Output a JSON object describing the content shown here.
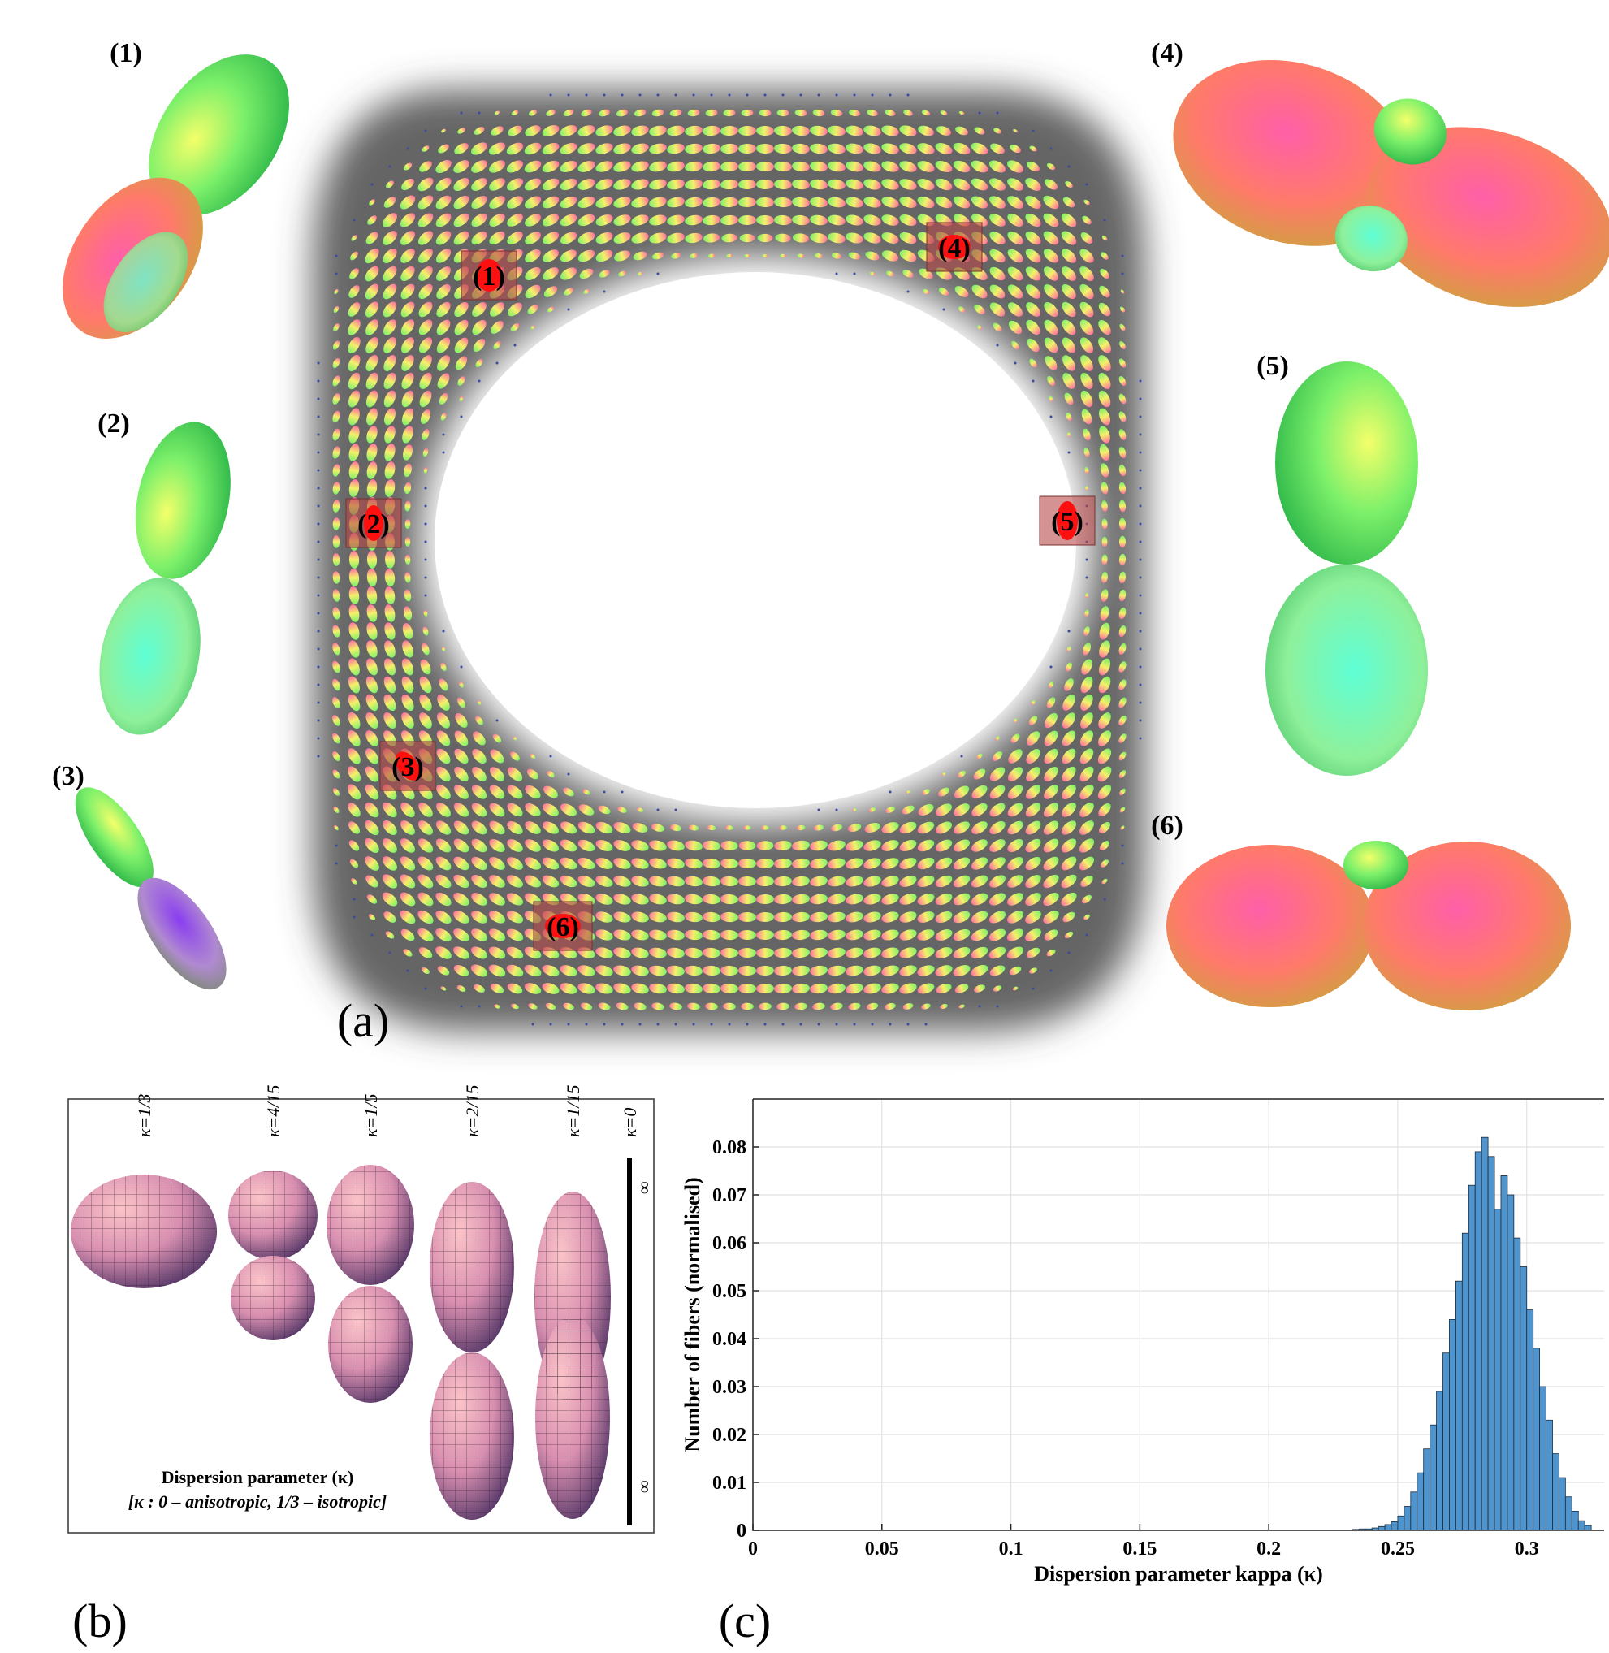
{
  "panel_labels": [
    "(a)",
    "(b)",
    "(c)"
  ],
  "glyph_labels": [
    "(1)",
    "(2)",
    "(3)",
    "(4)",
    "(5)",
    "(6)"
  ],
  "panel_b": {
    "kappa_labels": [
      "κ=1/3",
      "κ=4/15",
      "κ=1/5",
      "κ=2/15",
      "κ=1/15",
      "κ=0"
    ],
    "infinity": "∞",
    "caption": "Dispersion parameter (κ)",
    "note": "[κ : 0 – anisotropic, 1/3 – isotropic]"
  },
  "chart_data": {
    "type": "histogram",
    "xlabel": "Dispersion parameter kappa (κ)",
    "ylabel": "Number of fibers (normalised)",
    "bins": [
      0.23,
      0.2325,
      0.235,
      0.2375,
      0.24,
      0.2425,
      0.245,
      0.2475,
      0.25,
      0.2525,
      0.255,
      0.2575,
      0.26,
      0.2625,
      0.265,
      0.2675,
      0.27,
      0.2725,
      0.275,
      0.2775,
      0.28,
      0.2825,
      0.285,
      0.2875,
      0.29,
      0.2925,
      0.295,
      0.2975,
      0.3,
      0.3025,
      0.305,
      0.3075,
      0.31,
      0.3125,
      0.315,
      0.3175,
      0.32,
      0.3225,
      0.325
    ],
    "values": [
      0,
      0.0002,
      0.0003,
      0.0003,
      0.0005,
      0.0008,
      0.0012,
      0.0018,
      0.003,
      0.005,
      0.008,
      0.012,
      0.017,
      0.022,
      0.029,
      0.037,
      0.044,
      0.052,
      0.062,
      0.072,
      0.079,
      0.082,
      0.078,
      0.067,
      0.074,
      0.07,
      0.061,
      0.055,
      0.046,
      0.038,
      0.03,
      0.023,
      0.016,
      0.011,
      0.007,
      0.004,
      0.002,
      0.001
    ],
    "color": "#4f94cd",
    "xlim": [
      0,
      0.33
    ],
    "ylim": [
      0,
      0.09
    ],
    "xticks": [
      0,
      0.05,
      0.1,
      0.15,
      0.2,
      0.25,
      0.3
    ],
    "yticks": [
      0,
      0.01,
      0.02,
      0.03,
      0.04,
      0.05,
      0.06,
      0.07,
      0.08
    ],
    "grid": true
  }
}
